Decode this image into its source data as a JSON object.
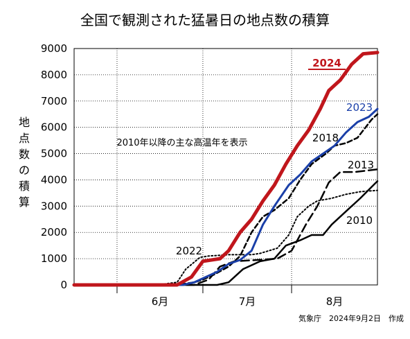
{
  "chart_data": {
    "type": "line",
    "title": "全国で観測された猛暑日の地点数の積算",
    "ylabel": "地点数の積算",
    "ylim": [
      0,
      9000
    ],
    "yticks": [
      "0",
      "1000",
      "2000",
      "3000",
      "4000",
      "5000",
      "6000",
      "7000",
      "8000",
      "9000"
    ],
    "x_axis": {
      "start": "2024-05-17",
      "end": "2024-08-31",
      "month_boundaries": [
        "2024-06-01",
        "2024-07-01",
        "2024-08-01"
      ],
      "month_labels": [
        "6月",
        "7月",
        "8月"
      ]
    },
    "grid": true,
    "annotation": "2010年以降の主な高温年を表示",
    "credit": "気象庁　2024年9月2日　作成",
    "series": [
      {
        "name": "2022",
        "color": "#000000",
        "style": "dotted",
        "width": 2,
        "dates": [
          "2024-05-17",
          "2024-06-15",
          "2024-06-22",
          "2024-06-25",
          "2024-06-30",
          "2024-07-03",
          "2024-07-10",
          "2024-07-18",
          "2024-07-21",
          "2024-07-27",
          "2024-07-31",
          "2024-08-03",
          "2024-08-07",
          "2024-08-10",
          "2024-08-15",
          "2024-08-20",
          "2024-08-25",
          "2024-08-31"
        ],
        "values": [
          0,
          0,
          100,
          600,
          1050,
          1100,
          1150,
          1150,
          1200,
          1400,
          1900,
          2600,
          3000,
          3200,
          3300,
          3450,
          3550,
          3600
        ]
      },
      {
        "name": "2018",
        "color": "#000000",
        "style": "dashed",
        "width": 2.5,
        "dates": [
          "2024-05-17",
          "2024-06-22",
          "2024-06-28",
          "2024-07-01",
          "2024-07-05",
          "2024-07-10",
          "2024-07-14",
          "2024-07-18",
          "2024-07-22",
          "2024-07-26",
          "2024-07-31",
          "2024-08-04",
          "2024-08-08",
          "2024-08-13",
          "2024-08-16",
          "2024-08-20",
          "2024-08-24",
          "2024-08-29",
          "2024-08-31"
        ],
        "values": [
          0,
          0,
          100,
          200,
          400,
          700,
          1100,
          2000,
          2600,
          2850,
          3300,
          4000,
          4600,
          5000,
          5300,
          5400,
          5600,
          6300,
          6500
        ]
      },
      {
        "name": "2013",
        "color": "#000000",
        "style": "longdash",
        "width": 2.5,
        "dates": [
          "2024-05-17",
          "2024-06-28",
          "2024-07-03",
          "2024-07-07",
          "2024-07-12",
          "2024-07-20",
          "2024-07-27",
          "2024-08-01",
          "2024-08-06",
          "2024-08-10",
          "2024-08-14",
          "2024-08-18",
          "2024-08-23",
          "2024-08-31"
        ],
        "values": [
          0,
          0,
          200,
          700,
          900,
          950,
          1000,
          1300,
          2300,
          3000,
          3900,
          4300,
          4300,
          4400
        ]
      },
      {
        "name": "2010",
        "color": "#000000",
        "style": "solid",
        "width": 2.5,
        "dates": [
          "2024-05-17",
          "2024-07-06",
          "2024-07-10",
          "2024-07-15",
          "2024-07-21",
          "2024-07-26",
          "2024-07-30",
          "2024-08-04",
          "2024-08-08",
          "2024-08-12",
          "2024-08-15",
          "2024-08-20",
          "2024-08-25",
          "2024-08-31"
        ],
        "values": [
          0,
          0,
          100,
          600,
          900,
          1000,
          1500,
          1700,
          1900,
          1900,
          2300,
          2800,
          3300,
          3950
        ]
      },
      {
        "name": "2023",
        "color": "#1a3fa8",
        "style": "solid",
        "width": 3,
        "dates": [
          "2024-05-17",
          "2024-06-24",
          "2024-06-28",
          "2024-07-02",
          "2024-07-06",
          "2024-07-10",
          "2024-07-14",
          "2024-07-18",
          "2024-07-22",
          "2024-07-26",
          "2024-07-31",
          "2024-08-04",
          "2024-08-08",
          "2024-08-12",
          "2024-08-16",
          "2024-08-20",
          "2024-08-24",
          "2024-08-28",
          "2024-08-31"
        ],
        "values": [
          0,
          0,
          100,
          300,
          500,
          800,
          950,
          1300,
          2300,
          3000,
          3800,
          4200,
          4700,
          5000,
          5300,
          5800,
          6200,
          6400,
          6700
        ]
      },
      {
        "name": "2024",
        "color": "#c0161c",
        "style": "solid",
        "width": 5,
        "dates": [
          "2024-05-17",
          "2024-06-22",
          "2024-06-27",
          "2024-07-01",
          "2024-07-04",
          "2024-07-07",
          "2024-07-10",
          "2024-07-14",
          "2024-07-18",
          "2024-07-22",
          "2024-07-26",
          "2024-07-30",
          "2024-08-03",
          "2024-08-07",
          "2024-08-11",
          "2024-08-14",
          "2024-08-18",
          "2024-08-22",
          "2024-08-26",
          "2024-08-31"
        ],
        "values": [
          0,
          0,
          300,
          900,
          950,
          1000,
          1300,
          2000,
          2500,
          3200,
          3800,
          4600,
          5300,
          5900,
          6700,
          7400,
          7800,
          8400,
          8800,
          8850
        ]
      }
    ]
  }
}
